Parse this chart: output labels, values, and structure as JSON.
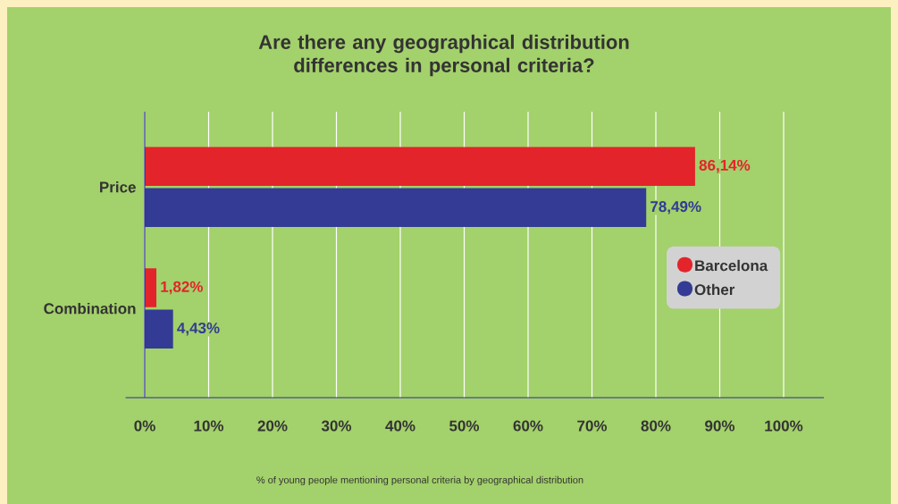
{
  "chart_data": {
    "type": "bar",
    "orientation": "horizontal",
    "title": "Are there any geographical distribution differences in personal criteria?",
    "categories": [
      "Price",
      "Combination"
    ],
    "series": [
      {
        "name": "Barcelona",
        "color": "#e3242b",
        "values": [
          86.14,
          1.82
        ],
        "value_labels": [
          "86,14%",
          "1,82%"
        ]
      },
      {
        "name": "Other",
        "color": "#333b94",
        "values": [
          78.49,
          4.43
        ],
        "value_labels": [
          "78,49%",
          "4,43%"
        ]
      }
    ],
    "xlim": [
      0,
      100
    ],
    "xticks": [
      {
        "value": 0,
        "label": "0%"
      },
      {
        "value": 10,
        "label": "10%"
      },
      {
        "value": 20,
        "label": "20%"
      },
      {
        "value": 30,
        "label": "30%"
      },
      {
        "value": 40,
        "label": "40%"
      },
      {
        "value": 50,
        "label": "50%"
      },
      {
        "value": 60,
        "label": "60%"
      },
      {
        "value": 70,
        "label": "70%"
      },
      {
        "value": 80,
        "label": "80%"
      },
      {
        "value": 90,
        "label": "90%"
      },
      {
        "value": 100,
        "label": "100%"
      }
    ],
    "grid": "x",
    "legend": "right",
    "annotations": [
      "% of young people mentioning personal criteria by geographical distribution"
    ]
  }
}
